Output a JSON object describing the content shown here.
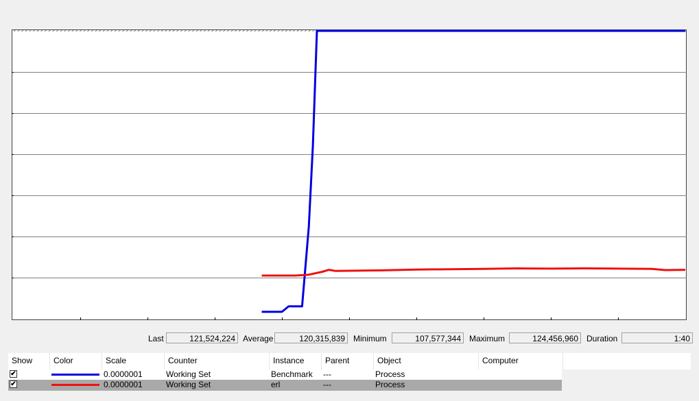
{
  "colors": {
    "benchmark_line": "#0000e0",
    "erl_line": "#ee1111",
    "selected_row": "#a9a9a9",
    "grid": "#808080"
  },
  "chart_data": {
    "type": "line",
    "title": "",
    "xlabel": "",
    "ylabel": "",
    "grid": true,
    "ylim": [
      0,
      100
    ],
    "x_count": 100,
    "series": [
      {
        "name": "Benchmark",
        "color": "#0000e0",
        "points": [
          [
            37,
            2.4
          ],
          [
            40,
            2.4
          ],
          [
            41,
            4.3
          ],
          [
            43,
            4.3
          ],
          [
            44,
            32
          ],
          [
            44.6,
            60
          ],
          [
            45.2,
            100
          ],
          [
            100,
            100
          ]
        ]
      },
      {
        "name": "erl",
        "color": "#ee1111",
        "points": [
          [
            37,
            15
          ],
          [
            42,
            15
          ],
          [
            44,
            15.3
          ],
          [
            46,
            16.3
          ],
          [
            47,
            17
          ],
          [
            48,
            16.6
          ],
          [
            55,
            16.8
          ],
          [
            60,
            17.1
          ],
          [
            70,
            17.3
          ],
          [
            75,
            17.5
          ],
          [
            80,
            17.4
          ],
          [
            85,
            17.5
          ],
          [
            90,
            17.4
          ],
          [
            95,
            17.3
          ],
          [
            97,
            16.9
          ],
          [
            100,
            17
          ]
        ]
      }
    ]
  },
  "stats": {
    "last_label": "Last",
    "last_value": "121,524,224",
    "average_label": "Average",
    "average_value": "120,315,839",
    "minimum_label": "Minimum",
    "minimum_value": "107,577,344",
    "maximum_label": "Maximum",
    "maximum_value": "124,456,960",
    "duration_label": "Duration",
    "duration_value": "1:40"
  },
  "table": {
    "headers": [
      "Show",
      "Color",
      "Scale",
      "Counter",
      "Instance",
      "Parent",
      "Object",
      "Computer"
    ],
    "rows": [
      {
        "show": "✔",
        "scale": "0.0000001",
        "counter": "Working Set",
        "instance": "Benchmark",
        "parent": "---",
        "object": "Process"
      },
      {
        "show": "✔",
        "scale": "0.0000001",
        "counter": "Working Set",
        "instance": "erl",
        "parent": "---",
        "object": "Process"
      }
    ]
  }
}
